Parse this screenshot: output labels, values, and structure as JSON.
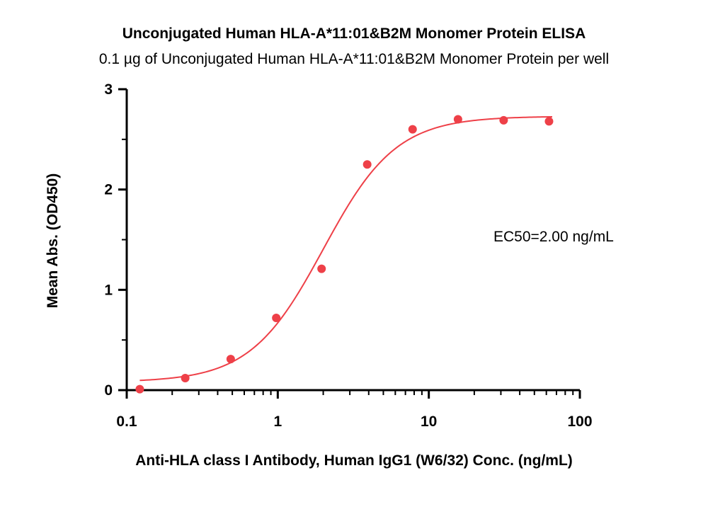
{
  "chart_data": {
    "type": "scatter",
    "title": "Unconjugated Human HLA-A*11:01&B2M Monomer Protein ELISA",
    "subtitle": "0.1 µg of Unconjugated Human HLA-A*11:01&B2M Monomer Protein per well",
    "xlabel": "Anti-HLA class I Antibody, Human IgG1 (W6/32) Conc. (ng/mL)",
    "ylabel": "Mean Abs. (OD450)",
    "x_scale": "log",
    "xlim": [
      0.1,
      100
    ],
    "ylim": [
      0,
      3
    ],
    "x_ticks": [
      0.1,
      1,
      10,
      100
    ],
    "x_tick_labels": [
      "0.1",
      "1",
      "10",
      "100"
    ],
    "y_ticks": [
      0,
      1,
      2,
      3
    ],
    "y_tick_labels": [
      "0",
      "1",
      "2",
      "3"
    ],
    "grid": false,
    "series": [
      {
        "color": "#ee4048",
        "x": [
          0.122,
          0.244,
          0.488,
          0.977,
          1.95,
          3.91,
          7.81,
          15.6,
          31.3,
          62.5
        ],
        "y": [
          0.01,
          0.12,
          0.31,
          0.72,
          1.21,
          2.25,
          2.6,
          2.7,
          2.69,
          2.68
        ]
      }
    ],
    "fit_curve": {
      "model": "4PL",
      "bottom": 0.08,
      "top": 2.73,
      "ec50": 2.0,
      "hill": 1.8,
      "color": "#ee4048"
    },
    "annotation": "EC50=2.00 ng/mL"
  }
}
